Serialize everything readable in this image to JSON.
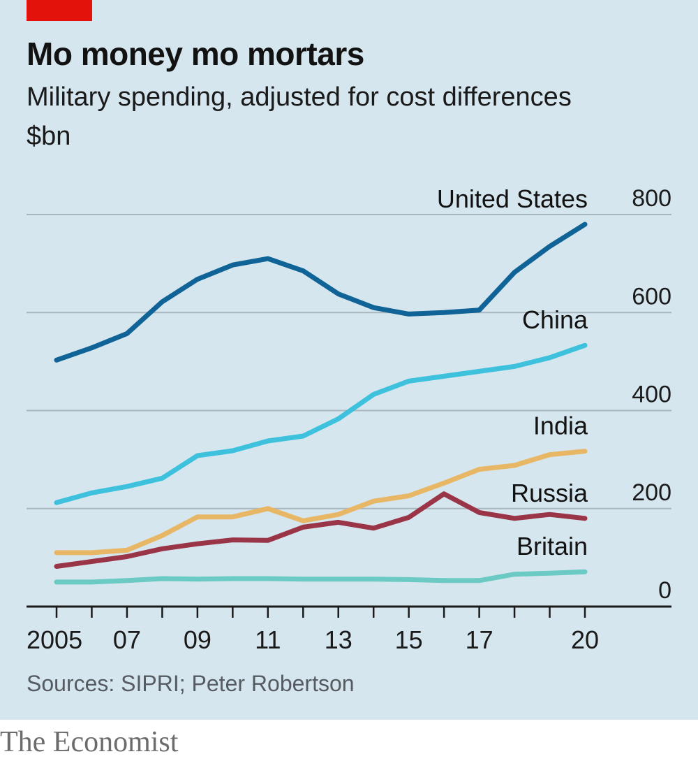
{
  "header": {
    "title": "Mo money mo mortars",
    "subtitle": "Military spending, adjusted for cost differences",
    "unit": "$bn"
  },
  "footer": {
    "source": "Sources: SIPRI; Peter Robertson",
    "brand": "The Economist"
  },
  "colors": {
    "background": "#d6e6ee",
    "brand_red": "#e3120b",
    "United States": "#0f6396",
    "China": "#3ec1dc",
    "India": "#e8b765",
    "Russia": "#9a3447",
    "Britain": "#6ccac4"
  },
  "chart_data": {
    "type": "line",
    "title": "Mo money mo mortars",
    "subtitle": "Military spending, adjusted for cost differences",
    "ylabel": "$bn",
    "x": [
      2005,
      2006,
      2007,
      2008,
      2009,
      2010,
      2011,
      2012,
      2013,
      2014,
      2015,
      2016,
      2017,
      2018,
      2019,
      2020
    ],
    "x_tick_values": [
      2005,
      2007,
      2009,
      2011,
      2013,
      2015,
      2017,
      2020
    ],
    "x_tick_labels": [
      "2005",
      "07",
      "09",
      "11",
      "13",
      "15",
      "17",
      "20"
    ],
    "y_ticks": [
      0,
      200,
      400,
      600,
      800
    ],
    "ylim": [
      0,
      800
    ],
    "grid": true,
    "legend": "direct labels at right end of each line",
    "series": [
      {
        "name": "United States",
        "values": [
          503,
          528,
          557,
          622,
          668,
          697,
          710,
          685,
          638,
          610,
          597,
          600,
          605,
          682,
          735,
          780
        ]
      },
      {
        "name": "China",
        "values": [
          212,
          232,
          245,
          262,
          308,
          318,
          338,
          348,
          383,
          433,
          460,
          470,
          480,
          490,
          508,
          533
        ]
      },
      {
        "name": "India",
        "values": [
          110,
          110,
          115,
          145,
          183,
          183,
          200,
          175,
          188,
          215,
          226,
          252,
          280,
          288,
          310,
          317
        ]
      },
      {
        "name": "Russia",
        "values": [
          82,
          92,
          102,
          118,
          128,
          136,
          135,
          162,
          172,
          160,
          182,
          230,
          192,
          180,
          188,
          180
        ]
      },
      {
        "name": "Britain",
        "values": [
          50,
          50,
          53,
          57,
          56,
          57,
          57,
          56,
          56,
          56,
          55,
          53,
          53,
          66,
          68,
          71
        ]
      }
    ]
  }
}
